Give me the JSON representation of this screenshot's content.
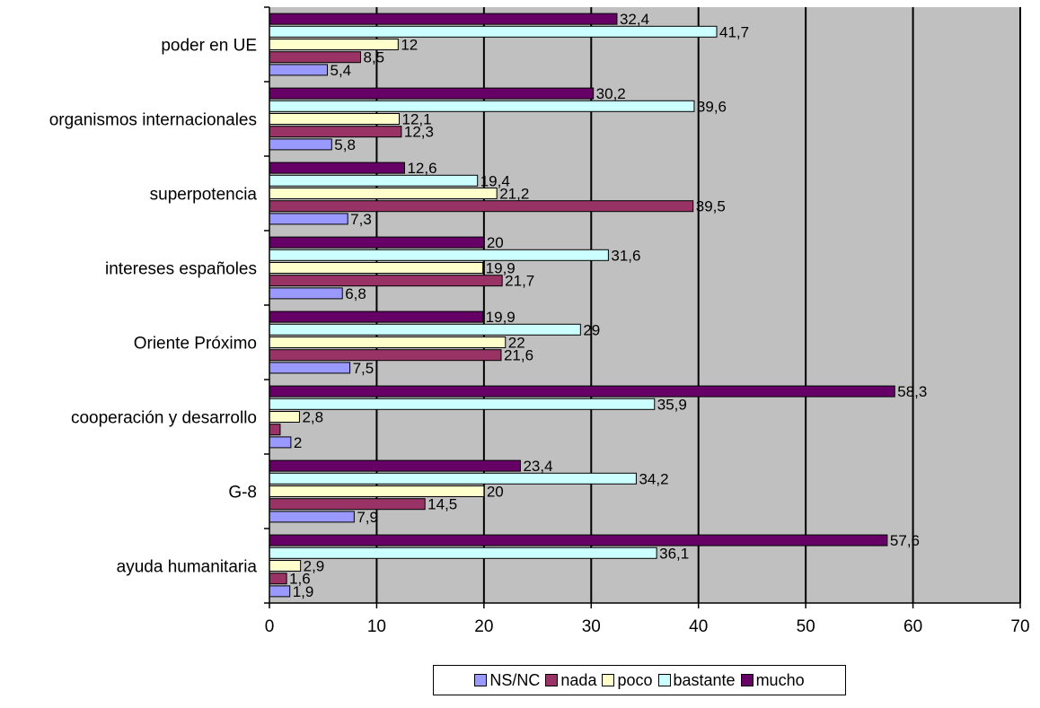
{
  "chart_data": {
    "type": "bar",
    "orientation": "horizontal",
    "categories": [
      "poder en UE",
      "organismos internacionales",
      "superpotencia",
      "intereses españoles",
      "Oriente Próximo",
      "cooperación y desarrollo",
      "G-8",
      "ayuda humanitaria"
    ],
    "series": [
      {
        "name": "NS/NC",
        "color": "#9999ff",
        "values": [
          5.4,
          5.8,
          7.3,
          6.8,
          7.5,
          2,
          7.9,
          1.9
        ],
        "labels": [
          "5,4",
          "5,8",
          "7,3",
          "6,8",
          "7,5",
          "2",
          "7,9",
          "1,9"
        ]
      },
      {
        "name": "nada",
        "color": "#993366",
        "values": [
          8.5,
          12.3,
          39.5,
          21.7,
          21.6,
          1,
          14.5,
          1.6
        ],
        "labels": [
          "8,5",
          "12,3",
          "39,5",
          "21,7",
          "21,6",
          "",
          "14,5",
          "1,6"
        ]
      },
      {
        "name": "poco",
        "color": "#ffffcc",
        "values": [
          12,
          12.1,
          21.2,
          19.9,
          22,
          2.8,
          20,
          2.9
        ],
        "labels": [
          "12",
          "12,1",
          "21,2",
          "19,9",
          "22",
          "2,8",
          "20",
          "2,9"
        ]
      },
      {
        "name": "bastante",
        "color": "#ccffff",
        "values": [
          41.7,
          39.6,
          19.4,
          31.6,
          29,
          35.9,
          34.2,
          36.1
        ],
        "labels": [
          "41,7",
          "39,6",
          "19,4",
          "31,6",
          "29",
          "35,9",
          "34,2",
          "36,1"
        ]
      },
      {
        "name": "mucho",
        "color": "#660066",
        "values": [
          32.4,
          30.2,
          12.6,
          20,
          19.9,
          58.3,
          23.4,
          57.6
        ],
        "labels": [
          "32,4",
          "30,2",
          "12,6",
          "20",
          "19,9",
          "58,3",
          "23,4",
          "57,6"
        ]
      }
    ],
    "xlim": [
      0,
      70
    ],
    "xticks": [
      0,
      10,
      20,
      30,
      40,
      50,
      60,
      70
    ],
    "grid": true,
    "plot_background": "#c0c0c0",
    "legend_position": "bottom"
  }
}
